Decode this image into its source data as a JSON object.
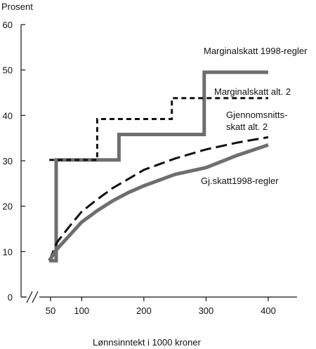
{
  "chart_data": {
    "type": "line",
    "title": "",
    "ylabel": "Prosent",
    "xlabel": "Lønnsinntekt i  1000 kroner",
    "xlim": [
      40,
      420
    ],
    "ylim": [
      0,
      60
    ],
    "x_ticks": [
      50,
      100,
      200,
      300,
      400
    ],
    "y_ticks": [
      0,
      10,
      20,
      30,
      40,
      50,
      60
    ],
    "axis_break": "//",
    "grid": false,
    "series": [
      {
        "name": "Marginalskatt 1998-regler",
        "style": "solid-gray-step",
        "color": "#6e6e6e",
        "points": [
          [
            48,
            8
          ],
          [
            59,
            8
          ],
          [
            59,
            30.2
          ],
          [
            160,
            30.2
          ],
          [
            160,
            35.8
          ],
          [
            297,
            35.8
          ],
          [
            297,
            49.5
          ],
          [
            400,
            49.5
          ]
        ]
      },
      {
        "name": "Marginalskatt alt. 2",
        "style": "dashed-black-step",
        "color": "#111111",
        "points": [
          [
            48,
            30.2
          ],
          [
            125,
            30.2
          ],
          [
            125,
            39.2
          ],
          [
            245,
            39.2
          ],
          [
            245,
            43.8
          ],
          [
            400,
            43.8
          ]
        ]
      },
      {
        "name": "Gjennomsnitts-\nskatt alt. 2",
        "style": "dashed-black",
        "color": "#111111",
        "points": [
          [
            48,
            8
          ],
          [
            60,
            12
          ],
          [
            80,
            15.5
          ],
          [
            100,
            18.8
          ],
          [
            125,
            21.5
          ],
          [
            150,
            24
          ],
          [
            175,
            26
          ],
          [
            200,
            28
          ],
          [
            250,
            30.5
          ],
          [
            300,
            32.5
          ],
          [
            350,
            34
          ],
          [
            400,
            35.2
          ]
        ]
      },
      {
        "name": "Gj.skatt1998-regler",
        "style": "solid-gray",
        "color": "#6e6e6e",
        "points": [
          [
            48,
            8
          ],
          [
            60,
            10.5
          ],
          [
            80,
            13.5
          ],
          [
            100,
            16.5
          ],
          [
            125,
            19
          ],
          [
            150,
            21.2
          ],
          [
            175,
            23
          ],
          [
            200,
            24.5
          ],
          [
            250,
            27
          ],
          [
            300,
            28.5
          ],
          [
            350,
            31.2
          ],
          [
            400,
            33.5
          ]
        ]
      }
    ]
  },
  "labels": {
    "marginal_1998": "Marginalskatt 1998-regler",
    "marginal_alt2": "Marginalskatt alt. 2",
    "avg_alt2_line1": "Gjennomsnitts-",
    "avg_alt2_line2": "skatt alt. 2",
    "avg_1998": "Gj.skatt1998-regler"
  }
}
